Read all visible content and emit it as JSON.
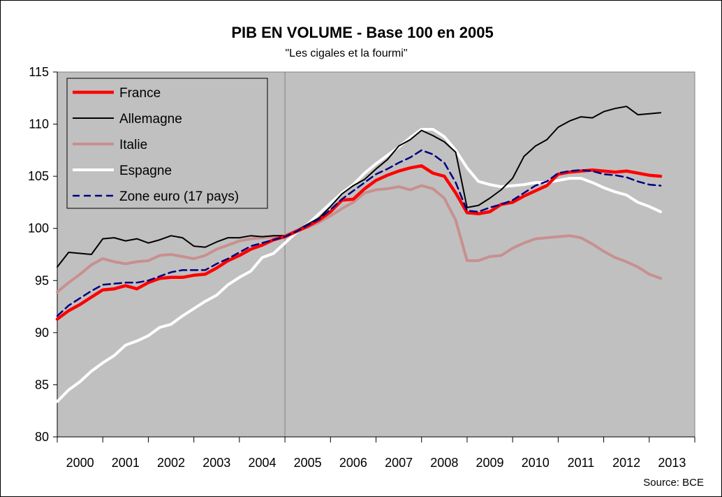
{
  "chart_data": {
    "type": "line",
    "title": "PIB EN VOLUME - Base 100 en 2005",
    "subtitle": "\"Les cigales et la fourmi\"",
    "source": "Source: BCE",
    "xlabel": "",
    "ylabel": "",
    "ylim": [
      80,
      115
    ],
    "xlim": [
      2000,
      2014
    ],
    "yticks": [
      80,
      85,
      90,
      95,
      100,
      105,
      110,
      115
    ],
    "xticks": [
      "2000",
      "2001",
      "2002",
      "2003",
      "2004",
      "2005",
      "2006",
      "2007",
      "2008",
      "2009",
      "2010",
      "2011",
      "2012",
      "2013"
    ],
    "grid": "vertical line at 2005 boundary",
    "legend_position": "top-left",
    "colors": {
      "plot_background": "#c0c0c0",
      "france": "#ff0000",
      "allemagne": "#000000",
      "italie": "#c89090",
      "espagne": "#ffffff",
      "zone_euro": "#000080"
    },
    "series": [
      {
        "name": "France",
        "x": [
          2000,
          2000.25,
          2000.5,
          2000.75,
          2001,
          2001.25,
          2001.5,
          2001.75,
          2002,
          2002.25,
          2002.5,
          2002.75,
          2003,
          2003.25,
          2003.5,
          2003.75,
          2004,
          2004.25,
          2004.5,
          2004.75,
          2005,
          2005.25,
          2005.5,
          2005.75,
          2006,
          2006.25,
          2006.5,
          2006.75,
          2007,
          2007.25,
          2007.5,
          2007.75,
          2008,
          2008.25,
          2008.5,
          2008.75,
          2009,
          2009.25,
          2009.5,
          2009.75,
          2010,
          2010.25,
          2010.5,
          2010.75,
          2011,
          2011.25,
          2011.5,
          2011.75,
          2012,
          2012.25,
          2012.5,
          2012.75,
          2013,
          2013.25
        ],
        "values": [
          91.3,
          92.1,
          92.7,
          93.4,
          94.1,
          94.2,
          94.5,
          94.2,
          94.8,
          95.2,
          95.3,
          95.3,
          95.5,
          95.6,
          96.2,
          96.9,
          97.4,
          98.0,
          98.4,
          98.9,
          99.2,
          99.7,
          100.2,
          100.8,
          101.6,
          102.7,
          102.8,
          103.8,
          104.6,
          105.1,
          105.5,
          105.8,
          106.0,
          105.3,
          105.0,
          103.4,
          101.5,
          101.4,
          101.6,
          102.3,
          102.5,
          103.1,
          103.6,
          104.1,
          105.2,
          105.4,
          105.5,
          105.6,
          105.5,
          105.4,
          105.5,
          105.3,
          105.1,
          105.0
        ]
      },
      {
        "name": "Allemagne",
        "x": [
          2000,
          2000.25,
          2000.5,
          2000.75,
          2001,
          2001.25,
          2001.5,
          2001.75,
          2002,
          2002.25,
          2002.5,
          2002.75,
          2003,
          2003.25,
          2003.5,
          2003.75,
          2004,
          2004.25,
          2004.5,
          2004.75,
          2005,
          2005.25,
          2005.5,
          2005.75,
          2006,
          2006.25,
          2006.5,
          2006.75,
          2007,
          2007.25,
          2007.5,
          2007.75,
          2008,
          2008.25,
          2008.5,
          2008.75,
          2009,
          2009.25,
          2009.5,
          2009.75,
          2010,
          2010.25,
          2010.5,
          2010.75,
          2011,
          2011.25,
          2011.5,
          2011.75,
          2012,
          2012.25,
          2012.5,
          2012.75,
          2013,
          2013.25
        ],
        "values": [
          96.3,
          97.7,
          97.6,
          97.5,
          99.0,
          99.1,
          98.8,
          99.0,
          98.6,
          98.9,
          99.3,
          99.1,
          98.3,
          98.2,
          98.7,
          99.1,
          99.1,
          99.3,
          99.2,
          99.3,
          99.3,
          99.8,
          100.4,
          101.0,
          102.1,
          103.3,
          104.1,
          104.7,
          105.7,
          106.6,
          107.9,
          108.5,
          109.4,
          108.9,
          108.3,
          107.3,
          102.0,
          102.2,
          102.9,
          103.7,
          104.8,
          106.9,
          107.9,
          108.5,
          109.7,
          110.3,
          110.7,
          110.6,
          111.2,
          111.5,
          111.7,
          110.9,
          111.0,
          111.1
        ]
      },
      {
        "name": "Italie",
        "x": [
          2000,
          2000.25,
          2000.5,
          2000.75,
          2001,
          2001.25,
          2001.5,
          2001.75,
          2002,
          2002.25,
          2002.5,
          2002.75,
          2003,
          2003.25,
          2003.5,
          2003.75,
          2004,
          2004.25,
          2004.5,
          2004.75,
          2005,
          2005.25,
          2005.5,
          2005.75,
          2006,
          2006.25,
          2006.5,
          2006.75,
          2007,
          2007.25,
          2007.5,
          2007.75,
          2008,
          2008.25,
          2008.5,
          2008.75,
          2009,
          2009.25,
          2009.5,
          2009.75,
          2010,
          2010.25,
          2010.5,
          2010.75,
          2011,
          2011.25,
          2011.5,
          2011.75,
          2012,
          2012.25,
          2012.5,
          2012.75,
          2013,
          2013.25
        ],
        "values": [
          93.9,
          94.8,
          95.6,
          96.5,
          97.1,
          96.8,
          96.6,
          96.8,
          96.9,
          97.4,
          97.5,
          97.3,
          97.1,
          97.4,
          98.0,
          98.4,
          98.8,
          99.0,
          99.1,
          99.2,
          99.3,
          99.8,
          100.1,
          100.6,
          101.2,
          101.9,
          102.5,
          103.4,
          103.7,
          103.8,
          104.0,
          103.7,
          104.1,
          103.8,
          102.9,
          100.8,
          96.9,
          96.9,
          97.3,
          97.4,
          98.1,
          98.6,
          99.0,
          99.1,
          99.2,
          99.3,
          99.1,
          98.5,
          97.8,
          97.2,
          96.8,
          96.3,
          95.6,
          95.2
        ]
      },
      {
        "name": "Espagne",
        "x": [
          2000,
          2000.25,
          2000.5,
          2000.75,
          2001,
          2001.25,
          2001.5,
          2001.75,
          2002,
          2002.25,
          2002.5,
          2002.75,
          2003,
          2003.25,
          2003.5,
          2003.75,
          2004,
          2004.25,
          2004.5,
          2004.75,
          2005,
          2005.25,
          2005.5,
          2005.75,
          2006,
          2006.25,
          2006.5,
          2006.75,
          2007,
          2007.25,
          2007.5,
          2007.75,
          2008,
          2008.25,
          2008.5,
          2008.75,
          2009,
          2009.25,
          2009.5,
          2009.75,
          2010,
          2010.25,
          2010.5,
          2010.75,
          2011,
          2011.25,
          2011.5,
          2011.75,
          2012,
          2012.25,
          2012.5,
          2012.75,
          2013,
          2013.25
        ],
        "values": [
          83.4,
          84.5,
          85.3,
          86.3,
          87.1,
          87.8,
          88.8,
          89.2,
          89.7,
          90.5,
          90.8,
          91.6,
          92.3,
          93.0,
          93.6,
          94.6,
          95.3,
          95.9,
          97.2,
          97.6,
          98.6,
          99.6,
          100.4,
          101.4,
          102.4,
          103.4,
          104.2,
          105.3,
          106.2,
          107.0,
          107.8,
          108.7,
          109.5,
          109.5,
          108.8,
          107.5,
          105.8,
          104.5,
          104.2,
          104.0,
          104.1,
          104.2,
          104.4,
          104.4,
          104.6,
          104.8,
          104.8,
          104.4,
          103.9,
          103.5,
          103.2,
          102.5,
          102.1,
          101.6
        ]
      },
      {
        "name": "Zone euro (17 pays)",
        "x": [
          2000,
          2000.25,
          2000.5,
          2000.75,
          2001,
          2001.25,
          2001.5,
          2001.75,
          2002,
          2002.25,
          2002.5,
          2002.75,
          2003,
          2003.25,
          2003.5,
          2003.75,
          2004,
          2004.25,
          2004.5,
          2004.75,
          2005,
          2005.25,
          2005.5,
          2005.75,
          2006,
          2006.25,
          2006.5,
          2006.75,
          2007,
          2007.25,
          2007.5,
          2007.75,
          2008,
          2008.25,
          2008.5,
          2008.75,
          2009,
          2009.25,
          2009.5,
          2009.75,
          2010,
          2010.25,
          2010.5,
          2010.75,
          2011,
          2011.25,
          2011.5,
          2011.75,
          2012,
          2012.25,
          2012.5,
          2012.75,
          2013,
          2013.25
        ],
        "values": [
          91.6,
          92.6,
          93.3,
          94.0,
          94.6,
          94.7,
          94.8,
          94.8,
          95.0,
          95.4,
          95.8,
          96.0,
          96.0,
          96.0,
          96.6,
          97.1,
          97.7,
          98.3,
          98.6,
          98.9,
          99.2,
          99.7,
          100.3,
          100.9,
          101.8,
          102.8,
          103.6,
          104.4,
          105.2,
          105.7,
          106.3,
          106.8,
          107.5,
          107.1,
          106.3,
          104.4,
          101.7,
          101.6,
          102.0,
          102.3,
          102.7,
          103.4,
          104.1,
          104.5,
          105.3,
          105.5,
          105.6,
          105.5,
          105.2,
          105.1,
          104.9,
          104.5,
          104.2,
          104.1
        ]
      }
    ]
  }
}
